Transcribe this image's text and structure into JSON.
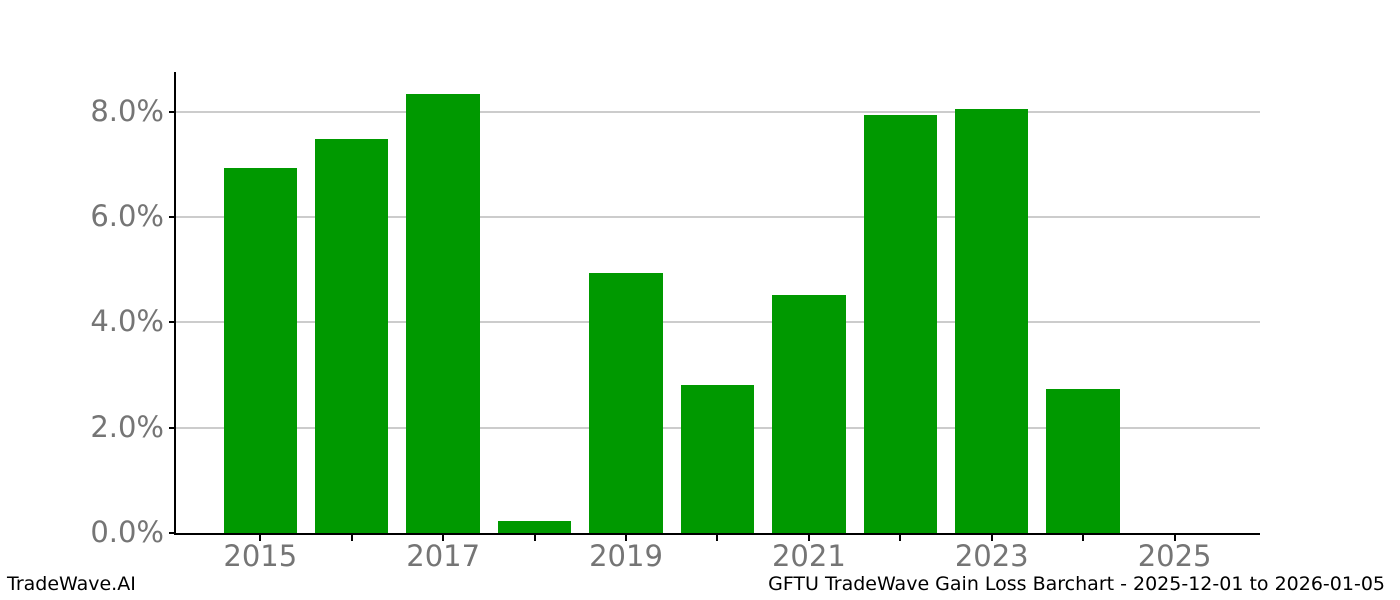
{
  "chart_data": {
    "type": "bar",
    "categories": [
      "2015",
      "2016",
      "2017",
      "2018",
      "2019",
      "2020",
      "2021",
      "2022",
      "2023",
      "2024",
      "2025"
    ],
    "values": [
      6.93,
      7.48,
      8.34,
      0.22,
      4.94,
      2.81,
      4.51,
      7.94,
      8.04,
      2.73,
      0.0
    ],
    "title": "",
    "xlabel": "",
    "ylabel": "",
    "ylim": [
      0,
      8.75
    ],
    "yticks": [
      0,
      2,
      4,
      6,
      8
    ],
    "ytick_labels": [
      "0.0%",
      "2.0%",
      "4.0%",
      "6.0%",
      "8.0%"
    ],
    "xtick_labels": [
      "2015",
      "",
      "2017",
      "",
      "2019",
      "",
      "2021",
      "",
      "2023",
      "",
      "2025"
    ],
    "grid": true,
    "legend_position": "none",
    "bar_color": "#009900",
    "grid_color": "#cccccc",
    "axis_color": "#000000",
    "tick_label_color": "#757575"
  },
  "footer": {
    "brand": "TradeWave.AI",
    "caption": "GFTU TradeWave Gain Loss Barchart - 2025-12-01 to 2026-01-05"
  }
}
